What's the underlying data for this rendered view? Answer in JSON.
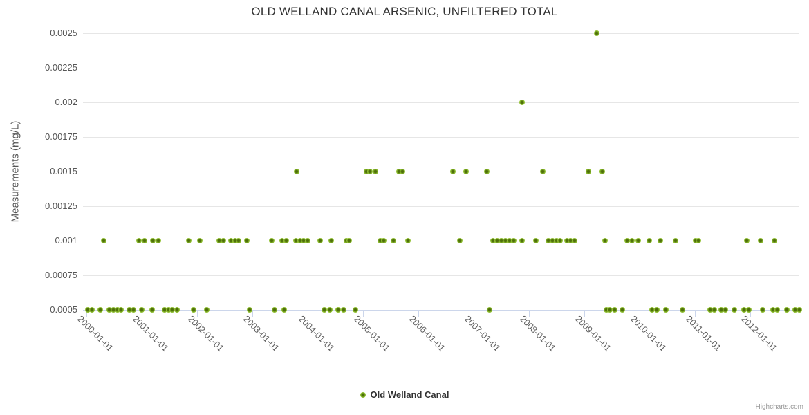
{
  "header": {
    "title": "OLD WELLAND CANAL ARSENIC, UNFILTERED TOTAL"
  },
  "legend": {
    "label": "Old Welland Canal"
  },
  "credit": "Highcharts.com",
  "colors": {
    "marker_outer": "#92c234",
    "marker_center": "#4e7009",
    "gridline": "#e6e6e6",
    "axis_line": "#ccd6eb",
    "title_text": "#333333",
    "label_text": "#606060",
    "credit_text": "#999999"
  },
  "chart_data": {
    "type": "scatter",
    "title": "OLD WELLAND CANAL ARSENIC, UNFILTERED TOTAL",
    "xlabel": "",
    "ylabel": "Measurements (mg/L)",
    "grid": "horizontal-only",
    "legend_position": "bottom-center",
    "x_range": [
      1999.9375,
      2012.875
    ],
    "y_range": [
      0.0005,
      0.0025
    ],
    "x_ticks": [
      {
        "x": 2000,
        "label": "2000-01-01"
      },
      {
        "x": 2001,
        "label": "2001-01-01"
      },
      {
        "x": 2002,
        "label": "2002-01-01"
      },
      {
        "x": 2003,
        "label": "2003-01-01"
      },
      {
        "x": 2004,
        "label": "2004-01-01"
      },
      {
        "x": 2005,
        "label": "2005-01-01"
      },
      {
        "x": 2006,
        "label": "2006-01-01"
      },
      {
        "x": 2007,
        "label": "2007-01-01"
      },
      {
        "x": 2008,
        "label": "2008-01-01"
      },
      {
        "x": 2009,
        "label": "2009-01-01"
      },
      {
        "x": 2010,
        "label": "2010-01-01"
      },
      {
        "x": 2011,
        "label": "2011-01-01"
      },
      {
        "x": 2012,
        "label": "2012-01-01"
      }
    ],
    "y_ticks": [
      {
        "v": 0.0005,
        "label": "0.0005"
      },
      {
        "v": 0.00075,
        "label": "0.00075"
      },
      {
        "v": 0.001,
        "label": "0.001"
      },
      {
        "v": 0.00125,
        "label": "0.00125"
      },
      {
        "v": 0.0015,
        "label": "0.0015"
      },
      {
        "v": 0.00175,
        "label": "0.00175"
      },
      {
        "v": 0.002,
        "label": "0.002"
      },
      {
        "v": 0.00225,
        "label": "0.00225"
      },
      {
        "v": 0.0025,
        "label": "0.0025"
      }
    ],
    "series": [
      {
        "name": "Old Welland Canal",
        "color": "#92c234",
        "points": [
          [
            2000.03,
            0.0005
          ],
          [
            2000.1,
            0.0005
          ],
          [
            2000.25,
            0.0005
          ],
          [
            2000.41,
            0.0005
          ],
          [
            2000.49,
            0.0005
          ],
          [
            2000.56,
            0.0005
          ],
          [
            2000.63,
            0.0005
          ],
          [
            2000.78,
            0.0005
          ],
          [
            2000.85,
            0.0005
          ],
          [
            2001.0,
            0.0005
          ],
          [
            2001.19,
            0.0005
          ],
          [
            2001.41,
            0.0005
          ],
          [
            2001.49,
            0.0005
          ],
          [
            2001.55,
            0.0005
          ],
          [
            2001.64,
            0.0005
          ],
          [
            2001.94,
            0.0005
          ],
          [
            2002.18,
            0.0005
          ],
          [
            2002.95,
            0.0005
          ],
          [
            2003.4,
            0.0005
          ],
          [
            2003.58,
            0.0005
          ],
          [
            2004.3,
            0.0005
          ],
          [
            2004.4,
            0.0005
          ],
          [
            2004.55,
            0.0005
          ],
          [
            2004.65,
            0.0005
          ],
          [
            2004.86,
            0.0005
          ],
          [
            2007.29,
            0.0005
          ],
          [
            2009.4,
            0.0005
          ],
          [
            2009.46,
            0.0005
          ],
          [
            2009.55,
            0.0005
          ],
          [
            2009.69,
            0.0005
          ],
          [
            2010.23,
            0.0005
          ],
          [
            2010.31,
            0.0005
          ],
          [
            2010.48,
            0.0005
          ],
          [
            2010.78,
            0.0005
          ],
          [
            2011.28,
            0.0005
          ],
          [
            2011.35,
            0.0005
          ],
          [
            2011.48,
            0.0005
          ],
          [
            2011.55,
            0.0005
          ],
          [
            2011.71,
            0.0005
          ],
          [
            2011.89,
            0.0005
          ],
          [
            2011.98,
            0.0005
          ],
          [
            2012.23,
            0.0005
          ],
          [
            2012.41,
            0.0005
          ],
          [
            2012.49,
            0.0005
          ],
          [
            2012.66,
            0.0005
          ],
          [
            2012.81,
            0.0005
          ],
          [
            2012.89,
            0.0005
          ],
          [
            2000.31,
            0.001
          ],
          [
            2000.95,
            0.001
          ],
          [
            2001.05,
            0.001
          ],
          [
            2001.2,
            0.001
          ],
          [
            2001.3,
            0.001
          ],
          [
            2001.85,
            0.001
          ],
          [
            2002.05,
            0.001
          ],
          [
            2002.4,
            0.001
          ],
          [
            2002.48,
            0.001
          ],
          [
            2002.61,
            0.001
          ],
          [
            2002.69,
            0.001
          ],
          [
            2002.75,
            0.001
          ],
          [
            2002.9,
            0.001
          ],
          [
            2003.35,
            0.001
          ],
          [
            2003.54,
            0.001
          ],
          [
            2003.61,
            0.001
          ],
          [
            2003.79,
            0.001
          ],
          [
            2003.86,
            0.001
          ],
          [
            2003.93,
            0.001
          ],
          [
            2004.0,
            0.001
          ],
          [
            2004.23,
            0.001
          ],
          [
            2004.43,
            0.001
          ],
          [
            2004.7,
            0.001
          ],
          [
            2004.75,
            0.001
          ],
          [
            2005.31,
            0.001
          ],
          [
            2005.38,
            0.001
          ],
          [
            2005.55,
            0.001
          ],
          [
            2005.81,
            0.001
          ],
          [
            2006.75,
            0.001
          ],
          [
            2007.35,
            0.001
          ],
          [
            2007.43,
            0.001
          ],
          [
            2007.5,
            0.001
          ],
          [
            2007.58,
            0.001
          ],
          [
            2007.65,
            0.001
          ],
          [
            2007.73,
            0.001
          ],
          [
            2007.88,
            0.001
          ],
          [
            2008.13,
            0.001
          ],
          [
            2008.35,
            0.001
          ],
          [
            2008.43,
            0.001
          ],
          [
            2008.5,
            0.001
          ],
          [
            2008.56,
            0.001
          ],
          [
            2008.69,
            0.001
          ],
          [
            2008.75,
            0.001
          ],
          [
            2008.83,
            0.001
          ],
          [
            2009.38,
            0.001
          ],
          [
            2009.77,
            0.001
          ],
          [
            2009.86,
            0.001
          ],
          [
            2009.97,
            0.001
          ],
          [
            2010.17,
            0.001
          ],
          [
            2010.38,
            0.001
          ],
          [
            2010.65,
            0.001
          ],
          [
            2011.01,
            0.001
          ],
          [
            2011.06,
            0.001
          ],
          [
            2011.94,
            0.001
          ],
          [
            2012.19,
            0.001
          ],
          [
            2012.44,
            0.001
          ],
          [
            2003.8,
            0.0015
          ],
          [
            2005.06,
            0.0015
          ],
          [
            2005.13,
            0.0015
          ],
          [
            2005.22,
            0.0015
          ],
          [
            2005.65,
            0.0015
          ],
          [
            2005.71,
            0.0015
          ],
          [
            2006.63,
            0.0015
          ],
          [
            2006.86,
            0.0015
          ],
          [
            2007.24,
            0.0015
          ],
          [
            2008.25,
            0.0015
          ],
          [
            2009.08,
            0.0015
          ],
          [
            2009.33,
            0.0015
          ],
          [
            2007.88,
            0.002
          ],
          [
            2009.22,
            0.0025
          ]
        ]
      }
    ]
  }
}
